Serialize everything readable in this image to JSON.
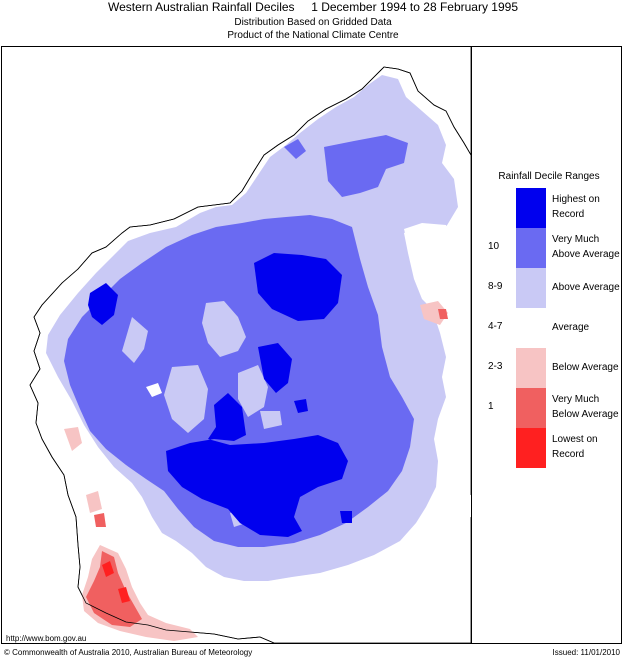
{
  "header": {
    "title": "Western Australian Rainfall Deciles     1 December 1994 to 28 February 1995",
    "subtitle_1": "Distribution Based on Gridded Data",
    "subtitle_2": "Product of the National Climate Centre"
  },
  "legend": {
    "title": "Rainfall Decile Ranges",
    "rows": [
      {
        "range": "",
        "label": "Highest on Record",
        "color": "#0000ee"
      },
      {
        "range": "10",
        "label": "Very Much Above Average",
        "color": "#6a6af2"
      },
      {
        "range": "8-9",
        "label": "Above Average",
        "color": "#c9c9f5"
      },
      {
        "range": "4-7",
        "label": "Average",
        "color": "#ffffff"
      },
      {
        "range": "2-3",
        "label": "Below Average",
        "color": "#f7c4c4"
      },
      {
        "range": "1",
        "label": "Very Much Below Average",
        "color": "#f06060"
      },
      {
        "range": "",
        "label": "Lowest on Record",
        "color": "#ff2020"
      }
    ]
  },
  "footer": {
    "url": "http://www.bom.gov.au",
    "copyright": "© Commonwealth of Australia 2010, Australian Bureau of Meteorology",
    "issued": "Issued: 11/01/2010"
  }
}
